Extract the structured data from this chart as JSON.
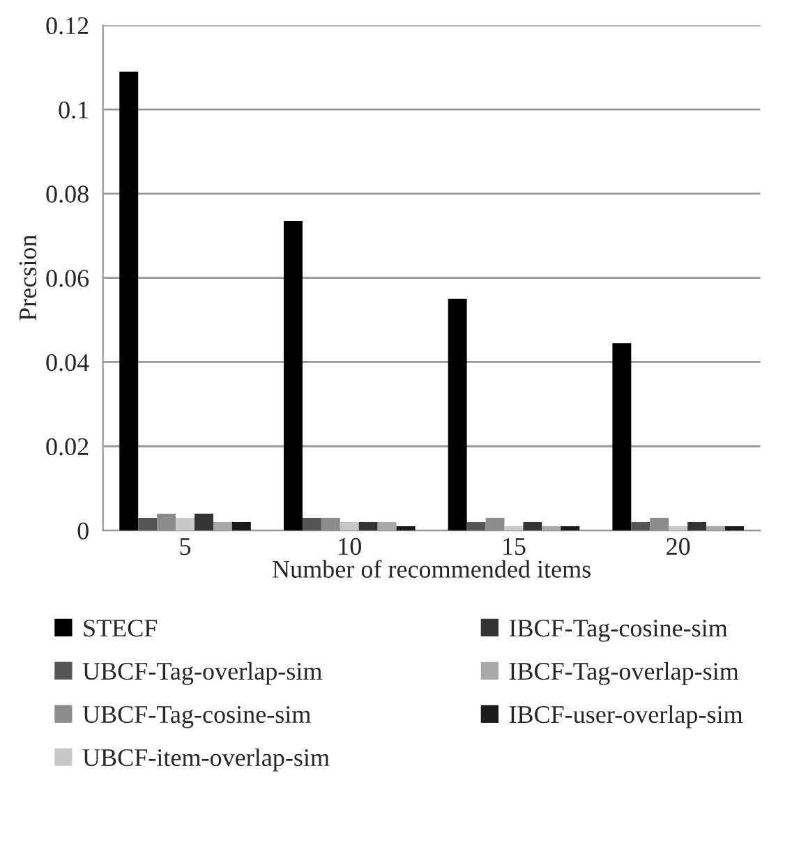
{
  "chart_data": {
    "type": "bar",
    "xlabel": "Number of recommended items",
    "ylabel": "Precsion",
    "categories": [
      "5",
      "10",
      "15",
      "20"
    ],
    "series": [
      {
        "name": "STECF",
        "color": "#000000",
        "values": [
          0.109,
          0.0735,
          0.055,
          0.0445
        ]
      },
      {
        "name": "UBCF-Tag-overlap-sim",
        "color": "#555555",
        "values": [
          0.003,
          0.003,
          0.002,
          0.002
        ]
      },
      {
        "name": "UBCF-Tag-cosine-sim",
        "color": "#8c8c8c",
        "values": [
          0.004,
          0.003,
          0.003,
          0.003
        ]
      },
      {
        "name": "UBCF-item-overlap-sim",
        "color": "#c8c8c8",
        "values": [
          0.003,
          0.002,
          0.001,
          0.001
        ]
      },
      {
        "name": "IBCF-Tag-cosine-sim",
        "color": "#333333",
        "values": [
          0.004,
          0.002,
          0.002,
          0.002
        ]
      },
      {
        "name": "IBCF-Tag-overlap-sim",
        "color": "#a8a8a8",
        "values": [
          0.002,
          0.002,
          0.001,
          0.001
        ]
      },
      {
        "name": "IBCF-user-overlap-sim",
        "color": "#1a1a1a",
        "values": [
          0.002,
          0.001,
          0.001,
          0.001
        ]
      }
    ],
    "ylim": [
      0,
      0.12
    ],
    "yticks": [
      {
        "value": 0,
        "label": "0"
      },
      0.02,
      0.04,
      0.06,
      0.08,
      0.1,
      0.12
    ],
    "grid": "y",
    "legend": "bottom"
  }
}
